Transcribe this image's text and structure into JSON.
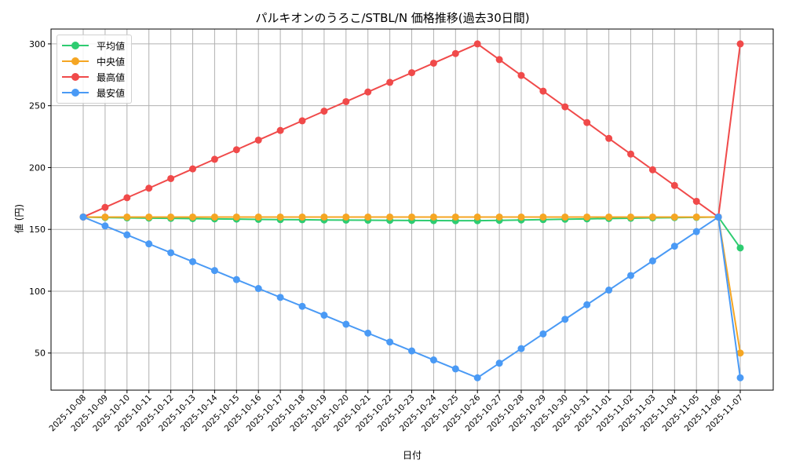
{
  "chart_data": {
    "type": "line",
    "title": "パルキオンのうろこ/STBL/N 価格推移(過去30日間)",
    "xlabel": "日付",
    "ylabel": "値 (円)",
    "ylim": [
      20,
      312
    ],
    "yticks": [
      50,
      100,
      150,
      200,
      250,
      300
    ],
    "grid": true,
    "legend_position": "upper left",
    "categories": [
      "2025-10-08",
      "2025-10-09",
      "2025-10-10",
      "2025-10-11",
      "2025-10-12",
      "2025-10-13",
      "2025-10-14",
      "2025-10-15",
      "2025-10-16",
      "2025-10-17",
      "2025-10-18",
      "2025-10-19",
      "2025-10-20",
      "2025-10-21",
      "2025-10-22",
      "2025-10-23",
      "2025-10-24",
      "2025-10-25",
      "2025-10-26",
      "2025-10-27",
      "2025-10-28",
      "2025-10-29",
      "2025-10-30",
      "2025-10-31",
      "2025-11-01",
      "2025-11-02",
      "2025-11-03",
      "2025-11-04",
      "2025-11-05",
      "2025-11-06",
      "2025-11-07"
    ],
    "series": [
      {
        "name": "平均値",
        "color": "#2ecc71",
        "values": [
          160,
          159.6,
          159.3,
          159.1,
          158.9,
          158.7,
          158.5,
          158.3,
          158.1,
          157.9,
          157.8,
          157.6,
          157.5,
          157.4,
          157.3,
          157.2,
          157.1,
          157.0,
          157.0,
          157.3,
          157.6,
          157.9,
          158.2,
          158.5,
          158.8,
          159.0,
          159.3,
          159.5,
          159.7,
          160,
          135
        ]
      },
      {
        "name": "中央値",
        "color": "#f5a623",
        "values": [
          160,
          160,
          160,
          160,
          160,
          160,
          160,
          160,
          160,
          160,
          160,
          160,
          160,
          160,
          160,
          160,
          160,
          160,
          160,
          160,
          160,
          160,
          160,
          160,
          160,
          160,
          160,
          160,
          160,
          160,
          50
        ]
      },
      {
        "name": "最高値",
        "color": "#f04a4a",
        "values": [
          160,
          167.8,
          175.6,
          183.3,
          191.1,
          198.9,
          206.7,
          214.4,
          222.2,
          230,
          237.8,
          245.6,
          253.3,
          261.1,
          268.9,
          276.7,
          284.4,
          292.2,
          300,
          287.3,
          274.5,
          261.8,
          249.1,
          236.4,
          223.6,
          210.9,
          198.2,
          185.5,
          172.7,
          160,
          300
        ]
      },
      {
        "name": "最安値",
        "color": "#4a9af5",
        "values": [
          160,
          152.8,
          145.6,
          138.3,
          131.1,
          123.9,
          116.7,
          109.4,
          102.2,
          95,
          87.8,
          80.6,
          73.3,
          66.1,
          58.9,
          51.7,
          44.4,
          37.2,
          30,
          41.8,
          53.6,
          65.5,
          77.3,
          89.1,
          100.9,
          112.7,
          124.5,
          136.4,
          148.2,
          160,
          30
        ]
      }
    ]
  }
}
